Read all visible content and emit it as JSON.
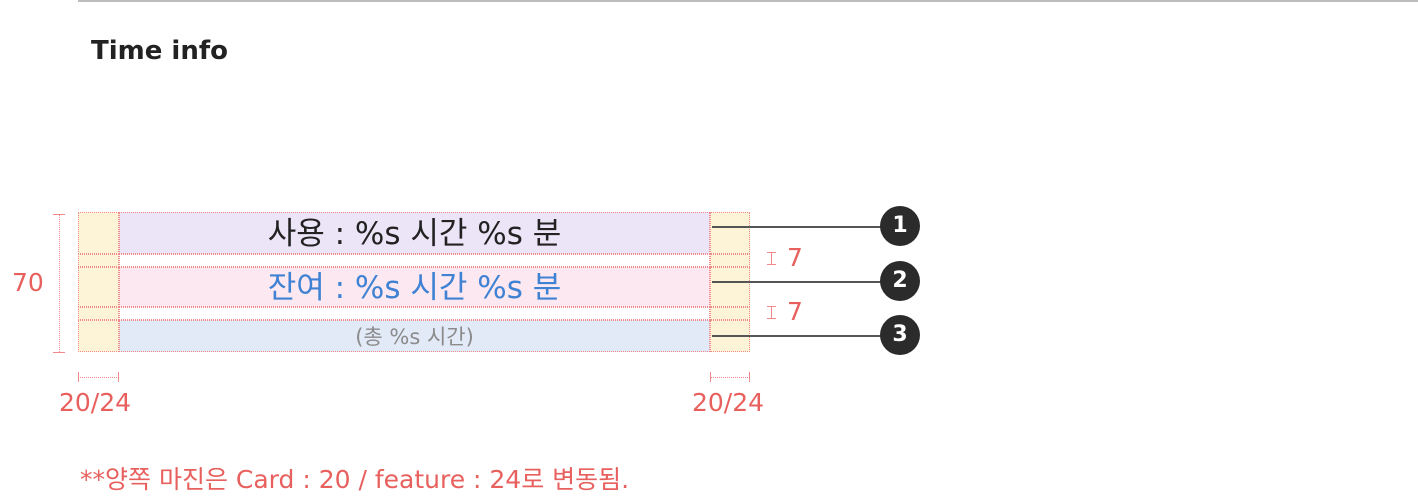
{
  "section": {
    "title": "Time info"
  },
  "rows": {
    "used": "사용 : %s 시간 %s 분",
    "remaining": "잔여 : %s 시간 %s 분",
    "total": "(총 %s 시간)"
  },
  "dimensions": {
    "height": "70",
    "gap_1": "7",
    "gap_2": "7",
    "margin_left": "20/24",
    "margin_right": "20/24"
  },
  "callouts": [
    "1",
    "2",
    "3"
  ],
  "footnote": "**양쪽 마진은  Card : 20 / feature : 24로 변동됨.",
  "colors": {
    "annotation": "#e8605d",
    "row_used_bg": "#ece5f8",
    "row_remaining_bg": "#fce8f1",
    "row_total_bg": "#e3eaf7",
    "margin_bg": "#fdf3d6",
    "remaining_text": "#3f82d3",
    "callout_bg": "#2b2b2b"
  }
}
